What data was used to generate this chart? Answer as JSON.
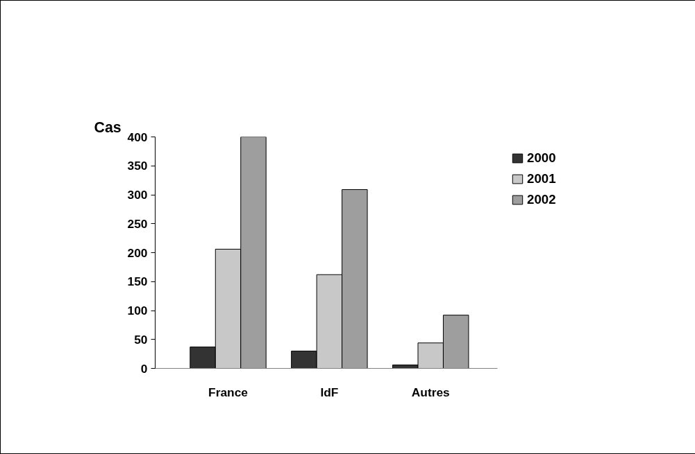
{
  "chart_data": {
    "type": "bar",
    "ylabel": "Cas",
    "categories": [
      "France",
      "IdF",
      "Autres"
    ],
    "series": [
      {
        "name": "2000",
        "color": "#333333",
        "values": [
          37,
          30,
          6
        ]
      },
      {
        "name": "2001",
        "color": "#c8c8c8",
        "values": [
          206,
          162,
          44
        ]
      },
      {
        "name": "2002",
        "color": "#9e9e9e",
        "values": [
          400,
          309,
          92
        ]
      }
    ],
    "ylim": [
      0,
      400
    ],
    "yticks": [
      0,
      50,
      100,
      150,
      200,
      250,
      300,
      350,
      400
    ],
    "grid": false,
    "legend": "top right"
  }
}
